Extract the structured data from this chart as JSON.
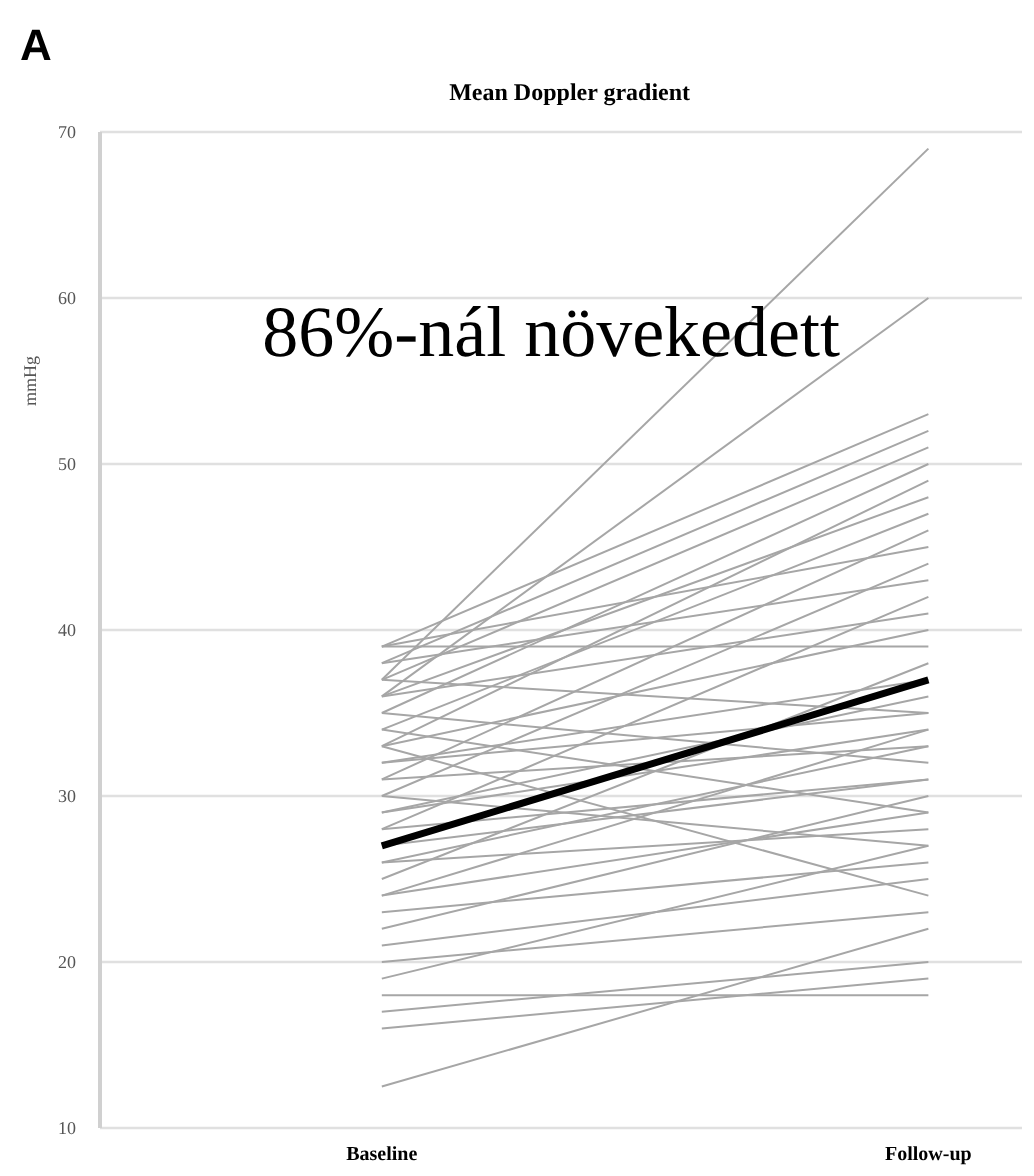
{
  "chart_data": {
    "type": "line",
    "title": "Mean Doppler gradient",
    "ylabel": "mmHg",
    "categories": [
      "Baseline",
      "Follow-up"
    ],
    "ylim": [
      10,
      70
    ],
    "yticks": [
      10,
      20,
      30,
      40,
      50,
      60,
      70
    ],
    "grid": "y",
    "marker": "none",
    "line_style": "solid",
    "annotations": [
      "A",
      "86%-nál növekedett"
    ],
    "series": [
      {
        "color": "#a6a6a6",
        "values": [
          37,
          69
        ]
      },
      {
        "color": "#a6a6a6",
        "values": [
          36,
          60
        ]
      },
      {
        "color": "#a6a6a6",
        "values": [
          39,
          53
        ]
      },
      {
        "color": "#a6a6a6",
        "values": [
          38,
          52
        ]
      },
      {
        "color": "#a6a6a6",
        "values": [
          37,
          51
        ]
      },
      {
        "color": "#a6a6a6",
        "values": [
          35,
          50
        ]
      },
      {
        "color": "#a6a6a6",
        "values": [
          33,
          49
        ]
      },
      {
        "color": "#a6a6a6",
        "values": [
          36,
          48
        ]
      },
      {
        "color": "#a6a6a6",
        "values": [
          34,
          47
        ]
      },
      {
        "color": "#a6a6a6",
        "values": [
          31,
          46
        ]
      },
      {
        "color": "#a6a6a6",
        "values": [
          39,
          45
        ]
      },
      {
        "color": "#a6a6a6",
        "values": [
          30,
          44
        ]
      },
      {
        "color": "#a6a6a6",
        "values": [
          38,
          43
        ]
      },
      {
        "color": "#a6a6a6",
        "values": [
          28,
          42
        ]
      },
      {
        "color": "#a6a6a6",
        "values": [
          36,
          41
        ]
      },
      {
        "color": "#a6a6a6",
        "values": [
          33,
          40
        ]
      },
      {
        "color": "#a6a6a6",
        "values": [
          39,
          39
        ]
      },
      {
        "color": "#a6a6a6",
        "values": [
          25,
          38
        ]
      },
      {
        "color": "#a6a6a6",
        "values": [
          32,
          37
        ]
      },
      {
        "color": "#a6a6a6",
        "values": [
          29,
          36
        ]
      },
      {
        "color": "#a6a6a6",
        "values": [
          37,
          35
        ]
      },
      {
        "color": "#a6a6a6",
        "values": [
          24,
          34
        ]
      },
      {
        "color": "#a6a6a6",
        "values": [
          31,
          33
        ]
      },
      {
        "color": "#a6a6a6",
        "values": [
          35,
          32
        ]
      },
      {
        "color": "#a6a6a6",
        "values": [
          27,
          31
        ]
      },
      {
        "color": "#a6a6a6",
        "values": [
          22,
          30
        ]
      },
      {
        "color": "#a6a6a6",
        "values": [
          34,
          29
        ]
      },
      {
        "color": "#a6a6a6",
        "values": [
          26,
          28
        ]
      },
      {
        "color": "#a6a6a6",
        "values": [
          30,
          27
        ]
      },
      {
        "color": "#a6a6a6",
        "values": [
          23,
          26
        ]
      },
      {
        "color": "#a6a6a6",
        "values": [
          21,
          25
        ]
      },
      {
        "color": "#a6a6a6",
        "values": [
          33,
          24
        ]
      },
      {
        "color": "#a6a6a6",
        "values": [
          20,
          23
        ]
      },
      {
        "color": "#a6a6a6",
        "values": [
          12.5,
          22
        ]
      },
      {
        "color": "#a6a6a6",
        "values": [
          17,
          20
        ]
      },
      {
        "color": "#a6a6a6",
        "values": [
          16,
          19
        ]
      },
      {
        "color": "#a6a6a6",
        "values": [
          18,
          18
        ]
      },
      {
        "color": "#a6a6a6",
        "values": [
          28,
          31
        ]
      },
      {
        "color": "#a6a6a6",
        "values": [
          26,
          33
        ]
      },
      {
        "color": "#a6a6a6",
        "values": [
          24,
          29
        ]
      },
      {
        "color": "#a6a6a6",
        "values": [
          19,
          27
        ]
      },
      {
        "color": "#a6a6a6",
        "values": [
          32,
          35
        ]
      },
      {
        "color": "#a6a6a6",
        "values": [
          29,
          34
        ]
      },
      {
        "color": "#000000",
        "values": [
          27,
          37
        ]
      }
    ]
  }
}
